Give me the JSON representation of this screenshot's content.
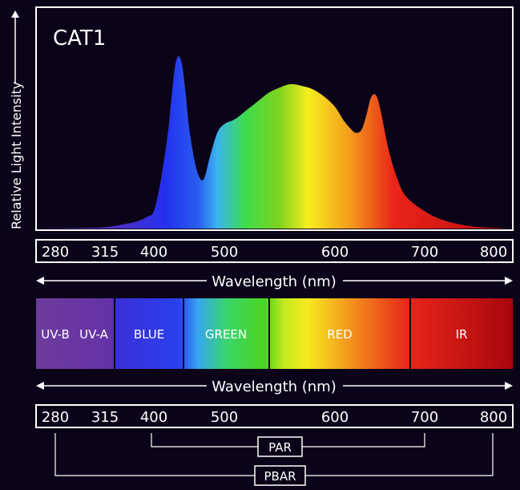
{
  "chart_data": {
    "type": "area",
    "title": "CAT1",
    "ylabel": "Relative Light Intensity",
    "xlabel": "Wavelength (nm)",
    "x_ticks": [
      280,
      315,
      400,
      500,
      600,
      700,
      800
    ],
    "x": [
      280,
      300,
      315,
      340,
      370,
      390,
      400,
      410,
      420,
      425,
      430,
      435,
      440,
      445,
      450,
      460,
      470,
      480,
      490,
      500,
      510,
      520,
      530,
      540,
      550,
      560,
      570,
      580,
      590,
      600,
      610,
      620,
      625,
      630,
      635,
      640,
      645,
      650,
      660,
      670,
      680,
      700,
      720,
      750,
      780,
      800
    ],
    "y": [
      0,
      0.3,
      0.8,
      2,
      4,
      7,
      10,
      28,
      55,
      75,
      93,
      99,
      94,
      78,
      58,
      35,
      28,
      42,
      55,
      60,
      63,
      68,
      73,
      78,
      81,
      83,
      82,
      80,
      76,
      70,
      62,
      56,
      55,
      57,
      65,
      75,
      77,
      70,
      45,
      28,
      18,
      10,
      5,
      1.5,
      0.4,
      0
    ]
  },
  "spectrum_bands": [
    {
      "label": "UV-B",
      "color": "#6b3a9b"
    },
    {
      "label": "UV-A",
      "color": "#6b3a9b"
    },
    {
      "label": "BLUE",
      "color": "#3b2ce8"
    },
    {
      "label": "GREEN",
      "color": "#47d21f"
    },
    {
      "label": "RED",
      "color": "#ea2a1a"
    },
    {
      "label": "IR",
      "color": "#b90d14"
    }
  ],
  "ranges": [
    {
      "label": "PAR"
    },
    {
      "label": "PBAR"
    }
  ],
  "colors": {
    "background": "#0b0419",
    "frame": "#ffffff",
    "uv": "#6a3a9a",
    "blue": "#2d2ff0",
    "cyan": "#3cc0ee",
    "green": "#45d51e",
    "yellow": "#f7ee20",
    "orange": "#f28a1c",
    "red": "#e81c1c",
    "deep_red": "#a5060c"
  }
}
